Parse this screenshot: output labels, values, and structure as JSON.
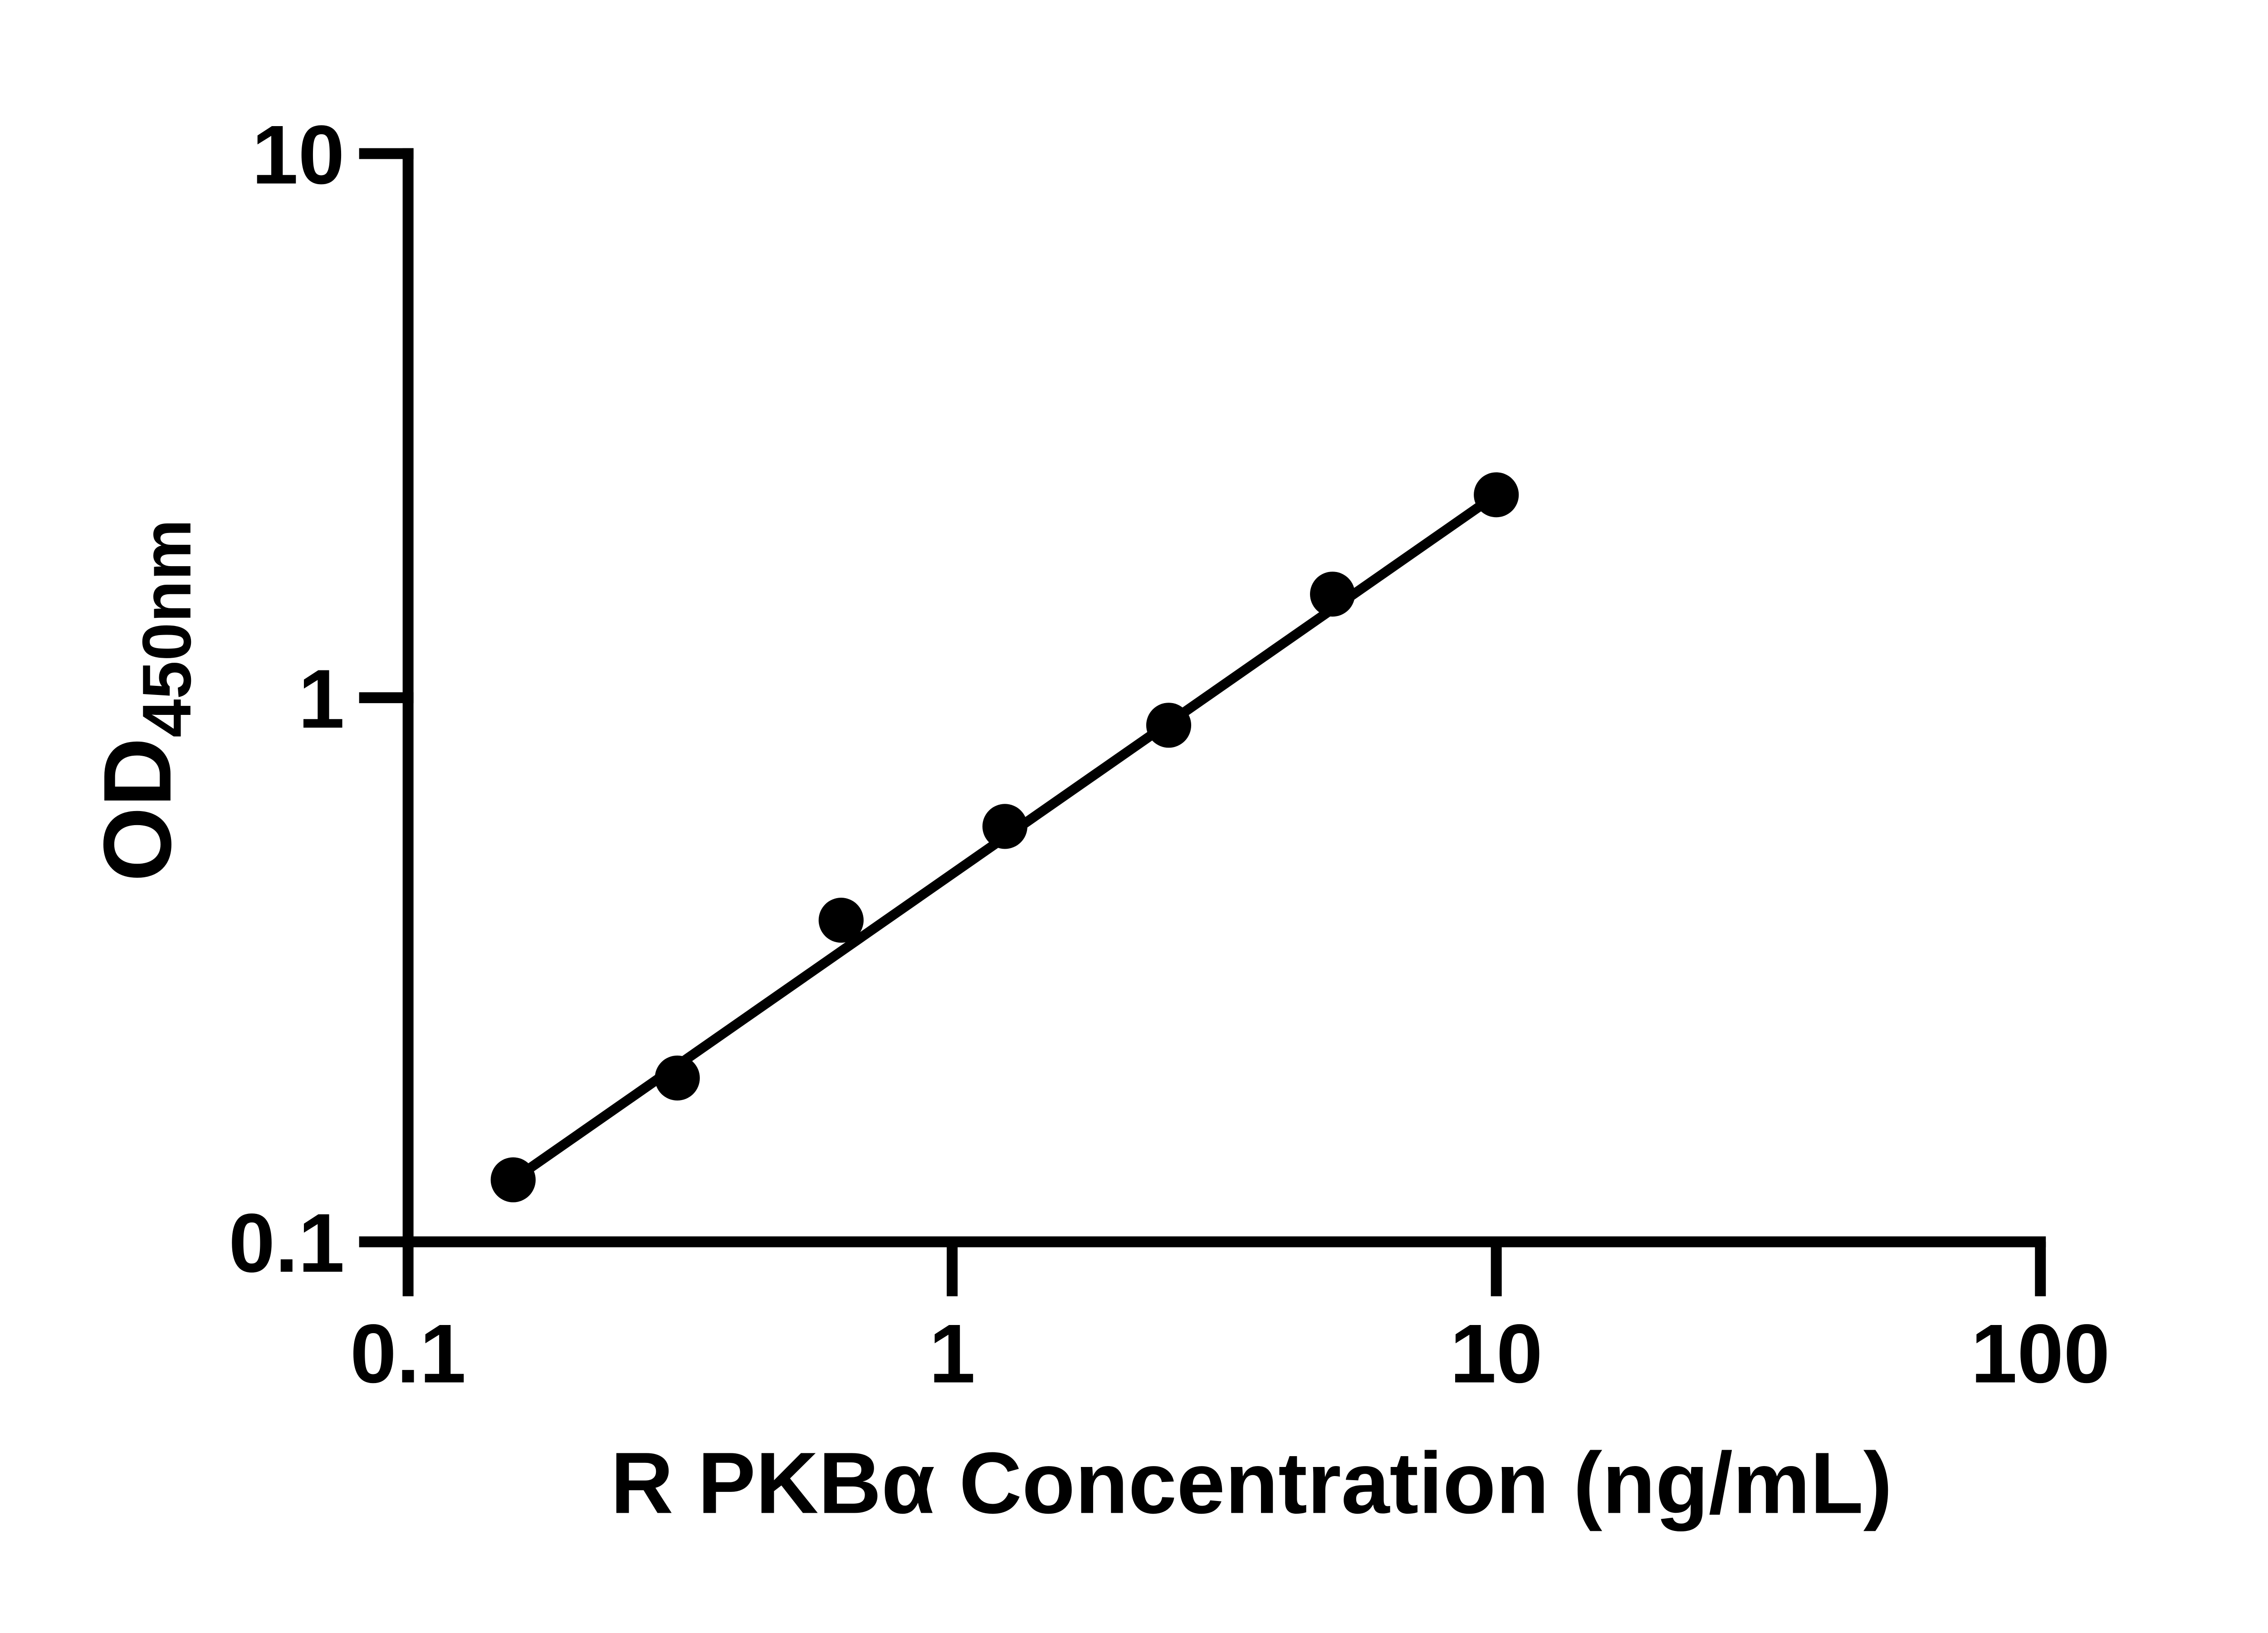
{
  "chart_data": {
    "type": "scatter",
    "title": "",
    "xlabel": "R PKBα Concentration (ng/mL)",
    "ylabel": "OD450nm",
    "ylabel_main": "OD",
    "ylabel_sub": "450nm",
    "x_scale": "log",
    "y_scale": "log",
    "xlim": [
      0.1,
      100
    ],
    "ylim": [
      0.1,
      10
    ],
    "x_ticks": [
      0.1,
      1,
      10,
      100
    ],
    "x_tick_labels": [
      "0.1",
      "1",
      "10",
      "100"
    ],
    "y_ticks": [
      10,
      1,
      0.1
    ],
    "y_tick_labels": [
      "10",
      "1",
      "0.1"
    ],
    "grid": false,
    "legend": false,
    "series": [
      {
        "name": "standard-curve-points",
        "marker": "circle",
        "color": "#000000",
        "x": [
          0.156,
          0.3125,
          0.625,
          1.25,
          2.5,
          5,
          10
        ],
        "y": [
          0.13,
          0.2,
          0.39,
          0.58,
          0.89,
          1.55,
          2.36
        ]
      }
    ],
    "trend_line": {
      "from": {
        "x": 0.156,
        "y": 0.13
      },
      "to": {
        "x": 10,
        "y": 2.36
      }
    },
    "colors": {
      "foreground": "#000000",
      "background": "#ffffff"
    }
  }
}
